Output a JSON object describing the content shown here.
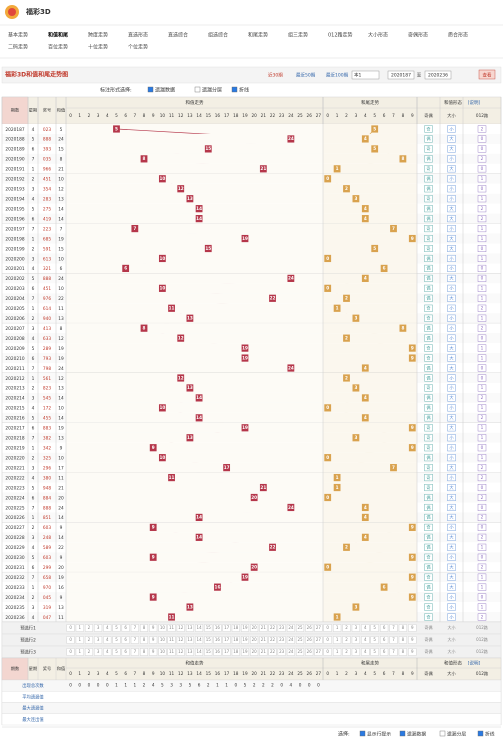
{
  "header": {
    "title": "福彩3D"
  },
  "nav": [
    "基本走势",
    "和值和尾",
    "跨度走势",
    "直选形态",
    "直选综合",
    "组选综合",
    "和尾走势",
    "组三走势",
    "012路走势",
    "大小形态",
    "奇偶形态",
    "质合形态",
    "二码走势",
    "百位走势",
    "十位走势",
    "个位走势"
  ],
  "toolbar": {
    "title": "福彩3D和值和尾走势图",
    "links": [
      "近30期",
      "最近50期",
      "最近100期"
    ],
    "select": "本1",
    "from": "2020187",
    "to_label": "至",
    "to": "2020236",
    "button": "查看"
  },
  "options": {
    "label": "标注形式选择:",
    "items": [
      "遗漏数据",
      "遗漏分层",
      "折线"
    ],
    "checked": [
      true,
      false,
      true
    ]
  },
  "columns": {
    "period": "期数",
    "week": "星期",
    "number": "奖号",
    "sum": "和值",
    "sum_trend": "和值走势",
    "tail_trend": "和尾走势",
    "form": "和值形态",
    "form_tag": "[说明]",
    "form_sub": [
      "奇偶",
      "大小",
      "012路"
    ]
  },
  "sum_axis": [
    0,
    1,
    2,
    3,
    4,
    5,
    6,
    7,
    8,
    9,
    10,
    11,
    12,
    13,
    14,
    15,
    16,
    17,
    18,
    19,
    20,
    21,
    22,
    23,
    24,
    25,
    26,
    27
  ],
  "tail_axis": [
    0,
    1,
    2,
    3,
    4,
    5,
    6,
    7,
    8,
    9
  ],
  "rows": [
    [
      "2020187",
      "4",
      "023",
      5,
      5,
      "奇",
      "小",
      2
    ],
    [
      "2020188",
      "5",
      "888",
      24,
      4,
      "偶",
      "大",
      0
    ],
    [
      "2020189",
      "6",
      "393",
      15,
      5,
      "奇",
      "大",
      0
    ],
    [
      "2020190",
      "7",
      "035",
      8,
      8,
      "偶",
      "小",
      2
    ],
    [
      "2020191",
      "1",
      "966",
      21,
      1,
      "奇",
      "大",
      0
    ],
    [
      "2020192",
      "2",
      "451",
      10,
      0,
      "偶",
      "小",
      1
    ],
    [
      "2020193",
      "3",
      "354",
      12,
      2,
      "偶",
      "小",
      0
    ],
    [
      "2020194",
      "4",
      "283",
      13,
      3,
      "奇",
      "小",
      1
    ],
    [
      "2020195",
      "5",
      "275",
      14,
      4,
      "偶",
      "大",
      2
    ],
    [
      "2020196",
      "6",
      "419",
      14,
      4,
      "偶",
      "大",
      2
    ],
    [
      "2020197",
      "7",
      "223",
      7,
      7,
      "奇",
      "小",
      1
    ],
    [
      "2020198",
      "1",
      "685",
      19,
      9,
      "奇",
      "大",
      1
    ],
    [
      "2020199",
      "2",
      "591",
      15,
      5,
      "奇",
      "大",
      0
    ],
    [
      "2020200",
      "3",
      "613",
      10,
      0,
      "偶",
      "小",
      1
    ],
    [
      "2020201",
      "4",
      "321",
      6,
      6,
      "偶",
      "小",
      0
    ],
    [
      "2020202",
      "5",
      "888",
      24,
      4,
      "偶",
      "大",
      0
    ],
    [
      "2020203",
      "6",
      "451",
      10,
      0,
      "偶",
      "小",
      1
    ],
    [
      "2020204",
      "7",
      "976",
      22,
      2,
      "偶",
      "大",
      1
    ],
    [
      "2020205",
      "1",
      "614",
      11,
      1,
      "奇",
      "小",
      2
    ],
    [
      "2020206",
      "2",
      "940",
      13,
      3,
      "奇",
      "小",
      1
    ],
    [
      "2020207",
      "3",
      "413",
      8,
      8,
      "偶",
      "小",
      2
    ],
    [
      "2020208",
      "4",
      "633",
      12,
      2,
      "偶",
      "小",
      0
    ],
    [
      "2020209",
      "5",
      "289",
      19,
      9,
      "奇",
      "大",
      1
    ],
    [
      "2020210",
      "6",
      "793",
      19,
      9,
      "奇",
      "大",
      1
    ],
    [
      "2020211",
      "7",
      "798",
      24,
      4,
      "偶",
      "大",
      0
    ],
    [
      "2020212",
      "1",
      "561",
      12,
      2,
      "偶",
      "小",
      0
    ],
    [
      "2020213",
      "2",
      "823",
      13,
      3,
      "奇",
      "小",
      1
    ],
    [
      "2020214",
      "3",
      "545",
      14,
      4,
      "偶",
      "大",
      2
    ],
    [
      "2020215",
      "4",
      "172",
      10,
      0,
      "偶",
      "小",
      1
    ],
    [
      "2020216",
      "5",
      "455",
      14,
      4,
      "偶",
      "大",
      2
    ],
    [
      "2020217",
      "6",
      "883",
      19,
      9,
      "奇",
      "大",
      1
    ],
    [
      "2020218",
      "7",
      "382",
      13,
      3,
      "奇",
      "小",
      1
    ],
    [
      "2020219",
      "1",
      "342",
      9,
      9,
      "奇",
      "小",
      0
    ],
    [
      "2020220",
      "2",
      "325",
      10,
      0,
      "偶",
      "小",
      1
    ],
    [
      "2020221",
      "3",
      "296",
      17,
      7,
      "奇",
      "大",
      2
    ],
    [
      "2020222",
      "4",
      "380",
      11,
      1,
      "奇",
      "小",
      2
    ],
    [
      "2020223",
      "5",
      "948",
      21,
      1,
      "奇",
      "大",
      0
    ],
    [
      "2020224",
      "6",
      "884",
      20,
      0,
      "偶",
      "大",
      2
    ],
    [
      "2020225",
      "7",
      "888",
      24,
      4,
      "偶",
      "大",
      0
    ],
    [
      "2020226",
      "1",
      "851",
      14,
      4,
      "偶",
      "大",
      2
    ],
    [
      "2020227",
      "2",
      "603",
      9,
      9,
      "奇",
      "小",
      0
    ],
    [
      "2020228",
      "3",
      "248",
      14,
      4,
      "偶",
      "大",
      2
    ],
    [
      "2020229",
      "4",
      "589",
      22,
      2,
      "偶",
      "大",
      1
    ],
    [
      "2020230",
      "5",
      "603",
      9,
      9,
      "奇",
      "小",
      0
    ],
    [
      "2020231",
      "6",
      "299",
      20,
      0,
      "偶",
      "大",
      2
    ],
    [
      "2020232",
      "7",
      "658",
      19,
      9,
      "奇",
      "大",
      1
    ],
    [
      "2020233",
      "1",
      "970",
      16,
      6,
      "偶",
      "大",
      1
    ],
    [
      "2020234",
      "2",
      "045",
      9,
      9,
      "奇",
      "小",
      0
    ],
    [
      "2020235",
      "3",
      "319",
      13,
      3,
      "奇",
      "小",
      1
    ],
    [
      "2020236",
      "4",
      "047",
      11,
      1,
      "奇",
      "小",
      2
    ]
  ],
  "preselect": [
    "预选行1",
    "预选行2",
    "预选行3"
  ],
  "stats": {
    "labels": [
      "出现总次数",
      "平均遗漏值",
      "最大遗漏值",
      "最大连出值"
    ],
    "total_counts": [
      0,
      0,
      0,
      0,
      0,
      1,
      1,
      1,
      2,
      4,
      5,
      3,
      3,
      5,
      6,
      2,
      1,
      1,
      0,
      5,
      2,
      2,
      2,
      0,
      4,
      0,
      0,
      0
    ]
  },
  "footer": {
    "label": "选择:",
    "items": [
      "显示行提示",
      "遗漏数据",
      "遗漏分层",
      "折线"
    ],
    "checked": [
      true,
      true,
      false,
      true
    ]
  }
}
